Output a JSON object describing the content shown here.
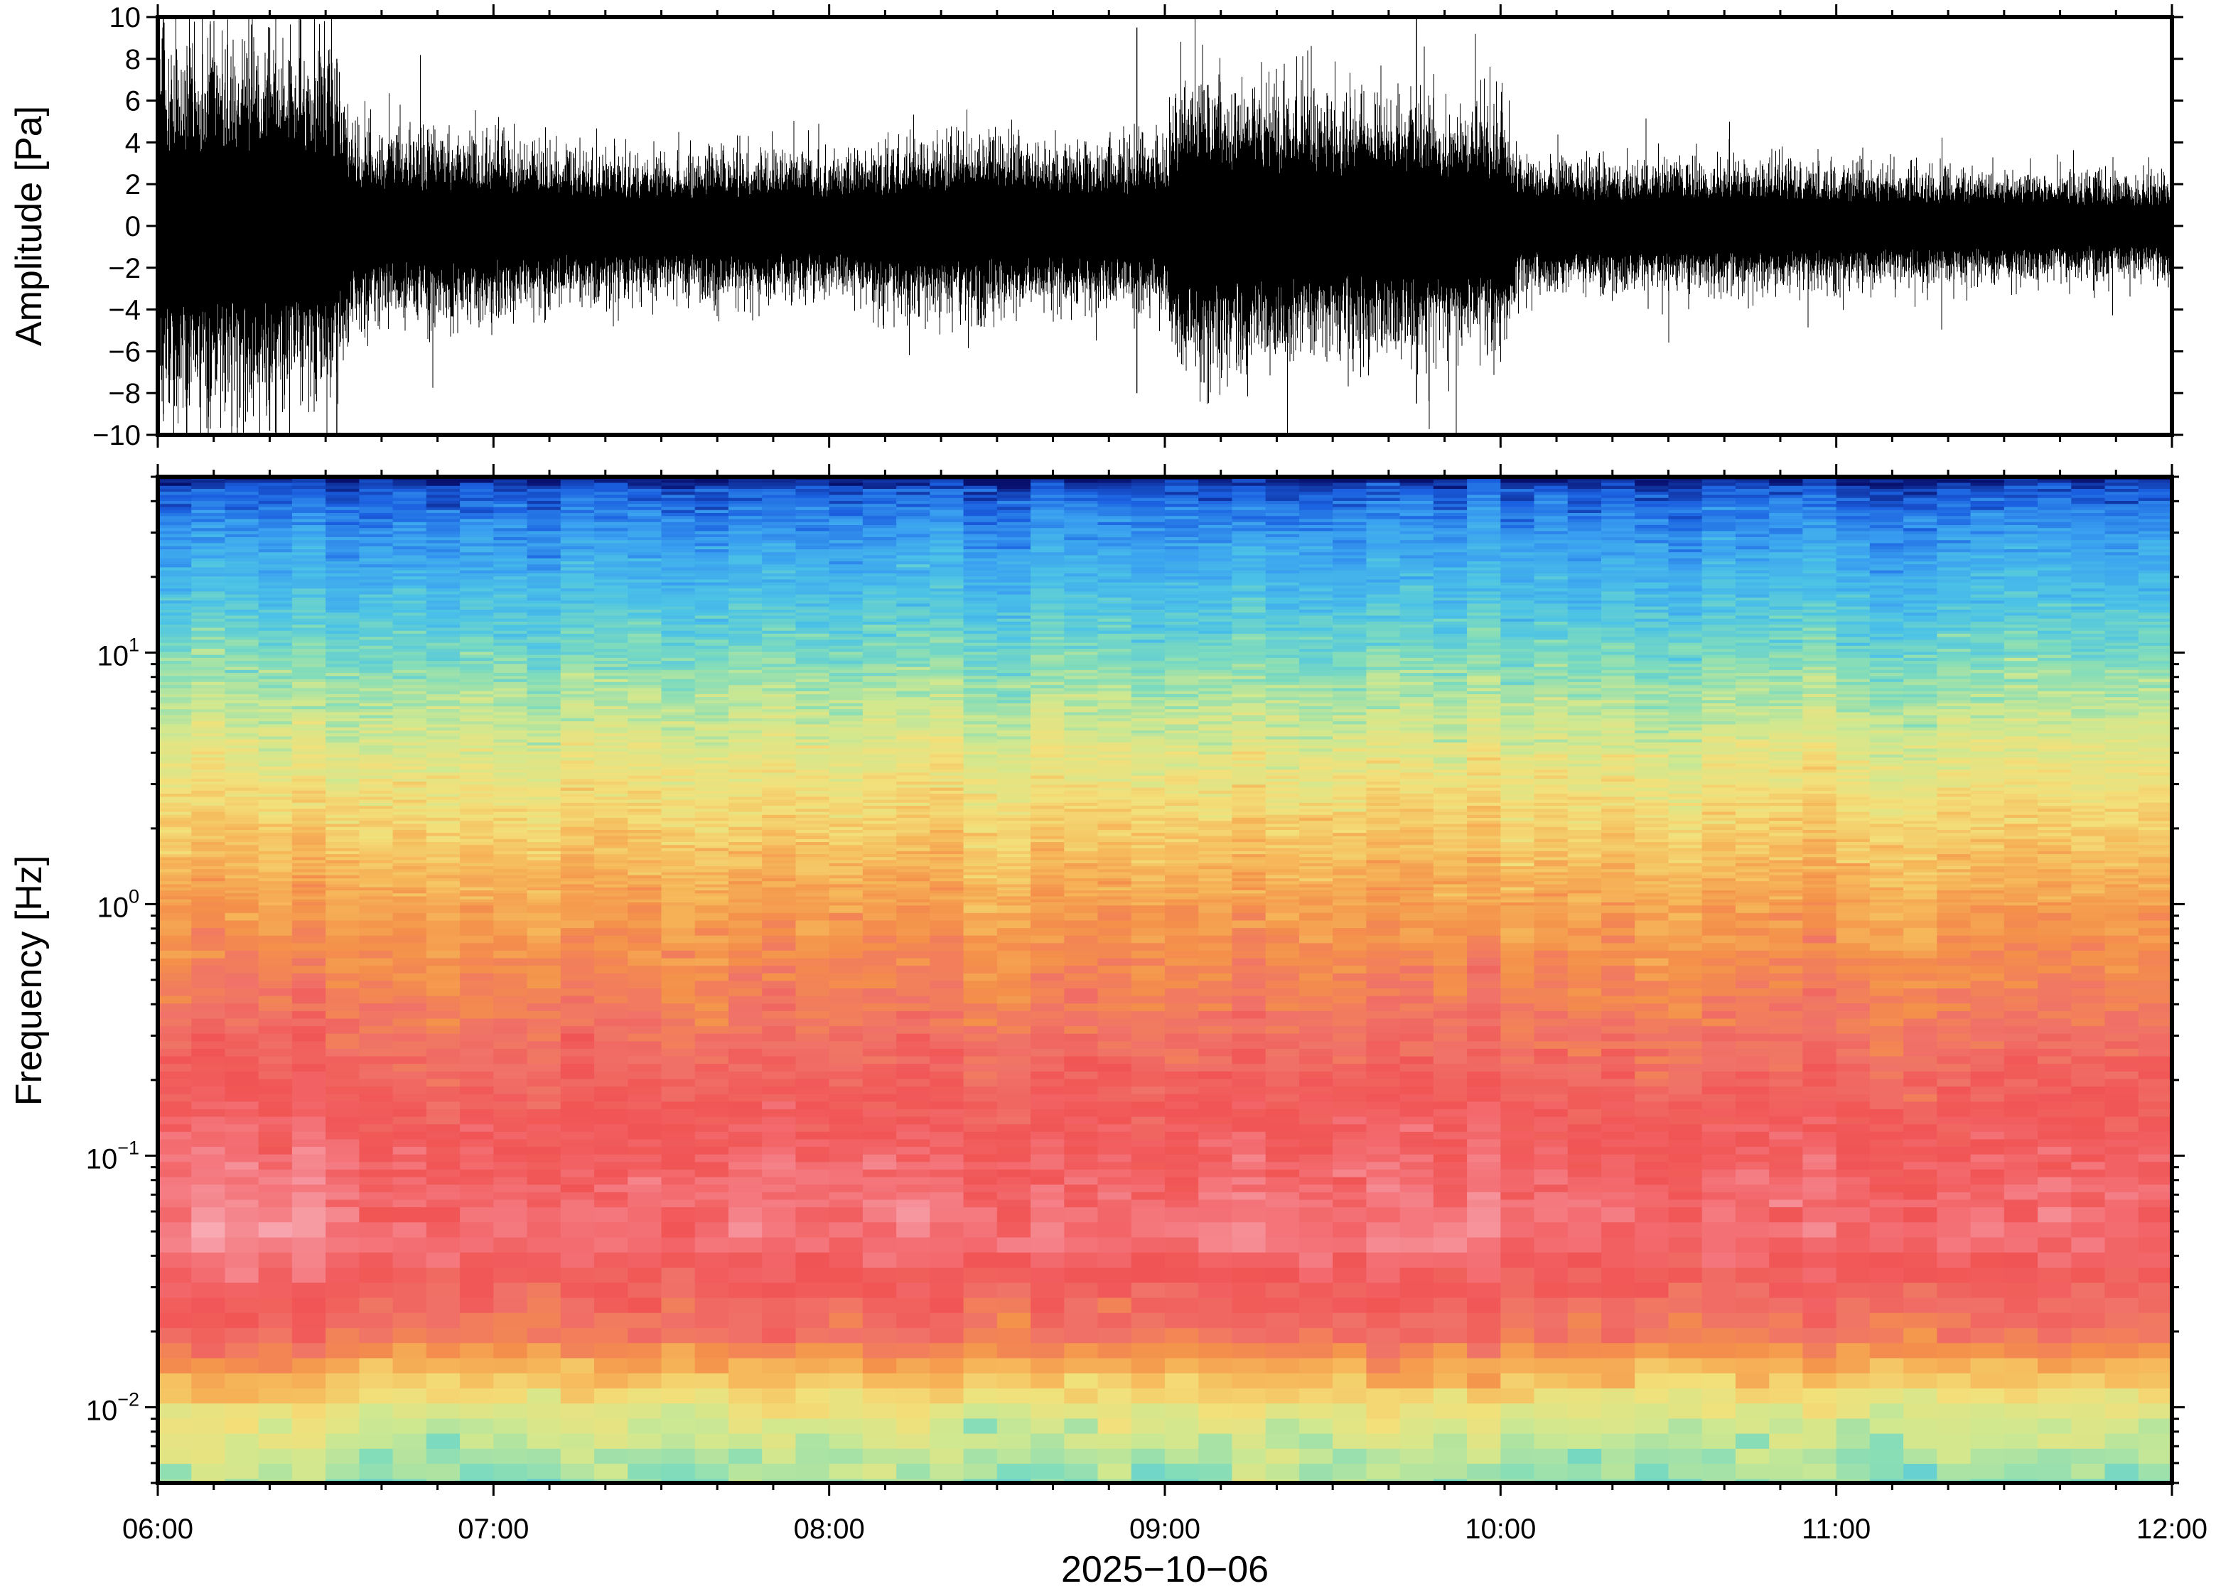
{
  "chart_data": [
    {
      "type": "line",
      "title": "",
      "xlabel": "",
      "ylabel": "Amplitude [Pa]",
      "ylim": [
        -10,
        10
      ],
      "yticks": [
        10,
        8,
        6,
        4,
        2,
        0,
        -2,
        -4,
        -6,
        -8,
        -10
      ],
      "ytick_labels": [
        "10",
        "8",
        "6",
        "4",
        "2",
        "0",
        "−2",
        "−4",
        "−6",
        "−8",
        "−10"
      ],
      "xlim": [
        "06:00",
        "12:00"
      ],
      "envelope": {
        "time_hours": [
          6.0,
          6.25,
          6.5,
          6.6,
          6.75,
          7.0,
          7.25,
          7.5,
          7.75,
          8.0,
          8.25,
          8.5,
          8.75,
          9.0,
          9.05,
          9.25,
          9.5,
          9.75,
          10.0,
          10.05,
          10.25,
          10.5,
          10.75,
          11.0,
          11.25,
          11.5,
          11.75,
          12.0
        ],
        "amplitude_pa": [
          6.5,
          6.0,
          5.8,
          3.2,
          3.0,
          2.9,
          2.4,
          2.3,
          2.5,
          2.3,
          2.8,
          2.8,
          2.6,
          2.8,
          4.8,
          4.5,
          4.3,
          4.1,
          3.9,
          2.3,
          2.0,
          2.1,
          2.1,
          2.0,
          1.9,
          1.8,
          1.7,
          1.6
        ]
      },
      "spikes": [
        {
          "time": "06:01",
          "max": 10,
          "min": -9
        },
        {
          "time": "06:20",
          "max": 9.5,
          "min": -9.8
        },
        {
          "time": "06:32",
          "max": 8,
          "min": -10
        },
        {
          "time": "08:55",
          "max": 9.5,
          "min": -8
        },
        {
          "time": "09:07",
          "max": 6.5,
          "min": -7.5
        },
        {
          "time": "09:45",
          "max": 10,
          "min": -8.5
        }
      ]
    },
    {
      "type": "heatmap",
      "title": "",
      "xlabel": "2025−10−06",
      "ylabel": "Frequency [Hz]",
      "y_scale": "log",
      "ylim": [
        0.005,
        50
      ],
      "yticks": [
        10,
        1,
        0.1,
        0.01
      ],
      "ytick_labels": [
        {
          "base": "10",
          "exp": "1"
        },
        {
          "base": "10",
          "exp": "0"
        },
        {
          "base": "10",
          "exp": "−1"
        },
        {
          "base": "10",
          "exp": "−2"
        }
      ],
      "xticks": [
        "06:00",
        "07:00",
        "08:00",
        "09:00",
        "10:00",
        "11:00",
        "12:00"
      ],
      "colormap": "rainbow, high power = pale pink/red, low power = blue",
      "colormap_stops": [
        "#08106e",
        "#1a5fe0",
        "#3aa0f0",
        "#4cc3e6",
        "#7fdcbc",
        "#cfe890",
        "#f3e07a",
        "#f6b85a",
        "#f4904a",
        "#f07268",
        "#f15454",
        "#f47a80",
        "#f8aab4"
      ],
      "frequency_band_levels": [
        {
          "freq_hz": 50,
          "level": 0.0
        },
        {
          "freq_hz": 45,
          "level": 0.08
        },
        {
          "freq_hz": 30,
          "level": 0.16
        },
        {
          "freq_hz": 15,
          "level": 0.26
        },
        {
          "freq_hz": 8,
          "level": 0.36
        },
        {
          "freq_hz": 4,
          "level": 0.46
        },
        {
          "freq_hz": 2,
          "level": 0.54
        },
        {
          "freq_hz": 1,
          "level": 0.63
        },
        {
          "freq_hz": 0.4,
          "level": 0.72
        },
        {
          "freq_hz": 0.2,
          "level": 0.79
        },
        {
          "freq_hz": 0.1,
          "level": 0.86
        },
        {
          "freq_hz": 0.05,
          "level": 0.9
        },
        {
          "freq_hz": 0.03,
          "level": 0.78
        },
        {
          "freq_hz": 0.02,
          "level": 0.72
        },
        {
          "freq_hz": 0.015,
          "level": 0.58
        },
        {
          "freq_hz": 0.01,
          "level": 0.44
        },
        {
          "freq_hz": 0.007,
          "level": 0.38
        },
        {
          "freq_hz": 0.005,
          "level": 0.34
        }
      ]
    }
  ]
}
